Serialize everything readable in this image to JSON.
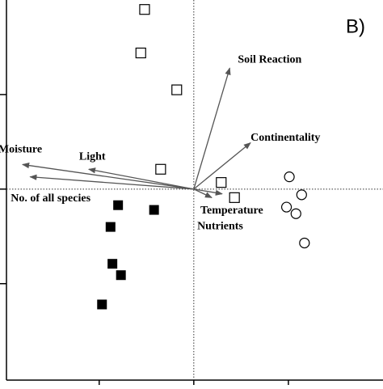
{
  "chart_data": {
    "type": "biplot",
    "panel_label": "B)",
    "xlim": [
      -1.98,
      2.0
    ],
    "ylim": [
      -2.02,
      2.0
    ],
    "xticks": [
      -1,
      0,
      1
    ],
    "yticks": [
      -1,
      0,
      1
    ],
    "zero_lines": true,
    "series": [
      {
        "marker": "square-open",
        "color": "#000000",
        "x": [
          -0.52,
          -0.56,
          -0.18,
          -0.35,
          0.29,
          0.43
        ],
        "y": [
          1.9,
          1.44,
          1.05,
          0.21,
          0.07,
          -0.09
        ]
      },
      {
        "marker": "square-filled",
        "color": "#000000",
        "x": [
          -0.8,
          -0.42,
          -0.88,
          -0.86,
          -0.77,
          -0.97
        ],
        "y": [
          -0.17,
          -0.22,
          -0.4,
          -0.79,
          -0.91,
          -1.22
        ]
      },
      {
        "marker": "circle-open",
        "color": "#000000",
        "x": [
          1.01,
          1.14,
          0.98,
          1.08,
          1.17
        ],
        "y": [
          0.13,
          -0.06,
          -0.19,
          -0.26,
          -0.57
        ]
      }
    ],
    "arrows": {
      "color": "#555555",
      "labels": [
        "Soil Reaction",
        "Continentality",
        "Moisture",
        "Light",
        "No. of all species",
        "Temperature",
        "Nutrients"
      ],
      "x": [
        0.38,
        0.6,
        -1.81,
        -1.11,
        -1.73,
        0.3,
        0.19
      ],
      "y": [
        1.28,
        0.49,
        0.26,
        0.21,
        0.13,
        -0.05,
        -0.09
      ]
    }
  }
}
